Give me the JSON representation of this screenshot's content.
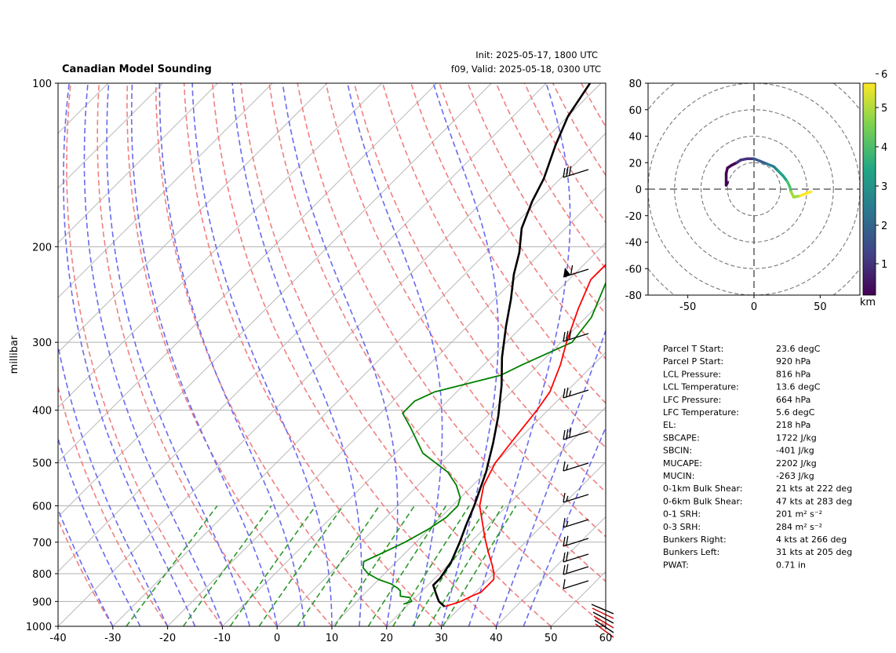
{
  "header": {
    "title": "Canadian Model Sounding",
    "init": "Init: 2025-05-17, 1800 UTC",
    "valid": "f09, Valid: 2025-05-18, 0300 UTC"
  },
  "chart_data": [
    {
      "type": "line",
      "subtype": "skew-t log-p",
      "ylabel": "millibar",
      "xlabel": "",
      "x_ticks": [
        -40,
        -30,
        -20,
        -10,
        0,
        10,
        20,
        30,
        40,
        50,
        60
      ],
      "y_ticks": [
        100,
        200,
        300,
        400,
        500,
        600,
        700,
        800,
        900,
        1000
      ],
      "xlim": [
        -40,
        60
      ],
      "ylim": [
        1000,
        100
      ],
      "y_scale": "log",
      "grid": true,
      "series": [
        {
          "color": "#008000",
          "points": [
            [
              19,
              910
            ],
            [
              20,
              900
            ],
            [
              19,
              885
            ],
            [
              17,
              880
            ],
            [
              16,
              860
            ],
            [
              15,
              850
            ],
            [
              13,
              835
            ],
            [
              10,
              820
            ],
            [
              7,
              800
            ],
            [
              5,
              780
            ],
            [
              4,
              760
            ],
            [
              6,
              730
            ],
            [
              8,
              700
            ],
            [
              10,
              660
            ],
            [
              11,
              630
            ],
            [
              11,
              600
            ],
            [
              10,
              580
            ],
            [
              7,
              550
            ],
            [
              3,
              520
            ],
            [
              -5,
              480
            ],
            [
              -12,
              430
            ],
            [
              -16,
              405
            ],
            [
              -16,
              385
            ],
            [
              -14,
              370
            ],
            [
              -5,
              345
            ],
            [
              -3,
              330
            ],
            [
              2,
              300
            ],
            [
              1,
              270
            ],
            [
              -3,
              230
            ],
            [
              -7,
              190
            ],
            [
              -9,
              170
            ],
            [
              -10,
              150
            ],
            [
              -11,
              130
            ],
            [
              -9,
              120
            ],
            [
              -10,
              110
            ],
            [
              -9,
              100
            ]
          ]
        },
        {
          "color": "#ff0000",
          "points": [
            [
              27,
              920
            ],
            [
              28,
              910
            ],
            [
              29,
              900
            ],
            [
              30,
              880
            ],
            [
              31,
              865
            ],
            [
              31,
              850
            ],
            [
              31,
              820
            ],
            [
              30,
              800
            ],
            [
              28,
              770
            ],
            [
              25,
              730
            ],
            [
              22,
              690
            ],
            [
              19,
              650
            ],
            [
              15,
              600
            ],
            [
              12,
              550
            ],
            [
              10,
              500
            ],
            [
              9,
              450
            ],
            [
              8,
              400
            ],
            [
              7,
              370
            ],
            [
              4,
              330
            ],
            [
              1,
              300
            ],
            [
              -3,
              260
            ],
            [
              -6,
              230
            ],
            [
              -6,
              200
            ],
            [
              -3,
              180
            ],
            [
              6,
              150
            ],
            [
              14,
              120
            ],
            [
              20,
              100
            ]
          ]
        },
        {
          "color": "#000000",
          "points": [
            [
              27,
              920
            ],
            [
              25,
              900
            ],
            [
              23,
              870
            ],
            [
              21,
              840
            ],
            [
              21,
              816
            ],
            [
              20,
              760
            ],
            [
              18,
              700
            ],
            [
              16,
              650
            ],
            [
              14,
              600
            ],
            [
              10,
              520
            ],
            [
              6,
              460
            ],
            [
              2,
              410
            ],
            [
              -3,
              360
            ],
            [
              -8,
              320
            ],
            [
              -13,
              280
            ],
            [
              -17,
              250
            ],
            [
              -21,
              225
            ],
            [
              -24,
              205
            ],
            [
              -28,
              185
            ],
            [
              -31,
              165
            ],
            [
              -33,
              150
            ],
            [
              -37,
              130
            ],
            [
              -40,
              115
            ],
            [
              -42,
              100
            ]
          ]
        }
      ]
    },
    {
      "type": "line",
      "subtype": "hodograph",
      "x_ticks": [
        -50,
        0,
        50
      ],
      "y_ticks": [
        -80,
        -60,
        -40,
        -20,
        0,
        20,
        40,
        60,
        80
      ],
      "xlim": [
        -80,
        80
      ],
      "ylim": [
        -80,
        80
      ],
      "colorbar_ticks": [
        "1",
        "2",
        "3",
        "4",
        "5",
        "6"
      ],
      "colorbar_label": "km",
      "points": [
        [
          -20,
          5
        ],
        [
          -21,
          3
        ],
        [
          -21,
          6
        ],
        [
          -21,
          12
        ],
        [
          -20,
          16
        ],
        [
          -17,
          18
        ],
        [
          -13,
          20
        ],
        [
          -10,
          22
        ],
        [
          -5,
          23
        ],
        [
          0,
          23
        ],
        [
          5,
          21
        ],
        [
          10,
          19
        ],
        [
          15,
          17
        ],
        [
          18,
          14
        ],
        [
          22,
          10
        ],
        [
          25,
          6
        ],
        [
          27,
          2
        ],
        [
          28,
          -2
        ],
        [
          30,
          -6
        ],
        [
          35,
          -5
        ],
        [
          40,
          -3
        ],
        [
          43,
          -2
        ]
      ]
    }
  ],
  "params": [
    {
      "label": "Parcel T Start:",
      "value": "23.6 degC"
    },
    {
      "label": "Parcel P Start:",
      "value": "920 hPa"
    },
    {
      "label": "LCL Pressure:",
      "value": "816 hPa"
    },
    {
      "label": "LCL Temperature:",
      "value": "13.6 degC"
    },
    {
      "label": "LFC Pressure:",
      "value": "664 hPa"
    },
    {
      "label": "LFC Temperature:",
      "value": "5.6 degC"
    },
    {
      "label": "EL:",
      "value": "218 hPa"
    },
    {
      "label": "SBCAPE:",
      "value": "1722 J/kg"
    },
    {
      "label": "SBCIN:",
      "value": "-401 J/kg"
    },
    {
      "label": "MUCAPE:",
      "value": "2202 J/kg"
    },
    {
      "label": "MUCIN:",
      "value": "-263 J/kg"
    },
    {
      "label": "0-1km Bulk Shear:",
      "value": "21 kts at 222 deg"
    },
    {
      "label": "0-6km Bulk Shear:",
      "value": "47 kts at 283 deg"
    },
    {
      "label": "0-1 SRH:",
      "value": "201 m² s⁻²"
    },
    {
      "label": "0-3 SRH:",
      "value": "284 m² s⁻²"
    },
    {
      "label": "Bunkers Right:",
      "value": "4 kts at 266 deg"
    },
    {
      "label": "Bunkers Left:",
      "value": "31 kts at 205 deg"
    },
    {
      "label": "PWAT:",
      "value": "0.71 in"
    }
  ]
}
